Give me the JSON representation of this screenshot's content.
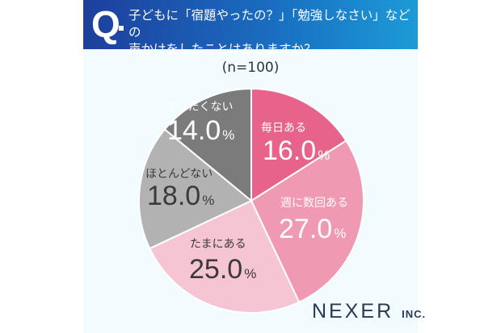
{
  "header": {
    "q_mark": "Q",
    "question": "子どもに「宿題やったの？」「勉強しなさい」などの\n声かけをしたことはありますか？"
  },
  "sample": "(n=100)",
  "logo": {
    "name": "NEXER",
    "suffix": "INC."
  },
  "chart_data": {
    "type": "pie",
    "start": "top",
    "direction": "clockwise",
    "categories": [
      "毎日ある",
      "週に数回ある",
      "たまにある",
      "ほとんどない",
      "まったくない"
    ],
    "values": [
      16.0,
      27.0,
      25.0,
      18.0,
      14.0
    ],
    "labels": [
      "16.0",
      "27.0",
      "25.0",
      "18.0",
      "14.0"
    ],
    "unit": "%",
    "colors": [
      "#e8638a",
      "#ef99b2",
      "#f5c5d3",
      "#b2b2b2",
      "#7b7b7b"
    ],
    "label_colors": [
      "#ffffff",
      "#ffffff",
      "#3a3a3a",
      "#3a3a3a",
      "#ffffff"
    ]
  }
}
